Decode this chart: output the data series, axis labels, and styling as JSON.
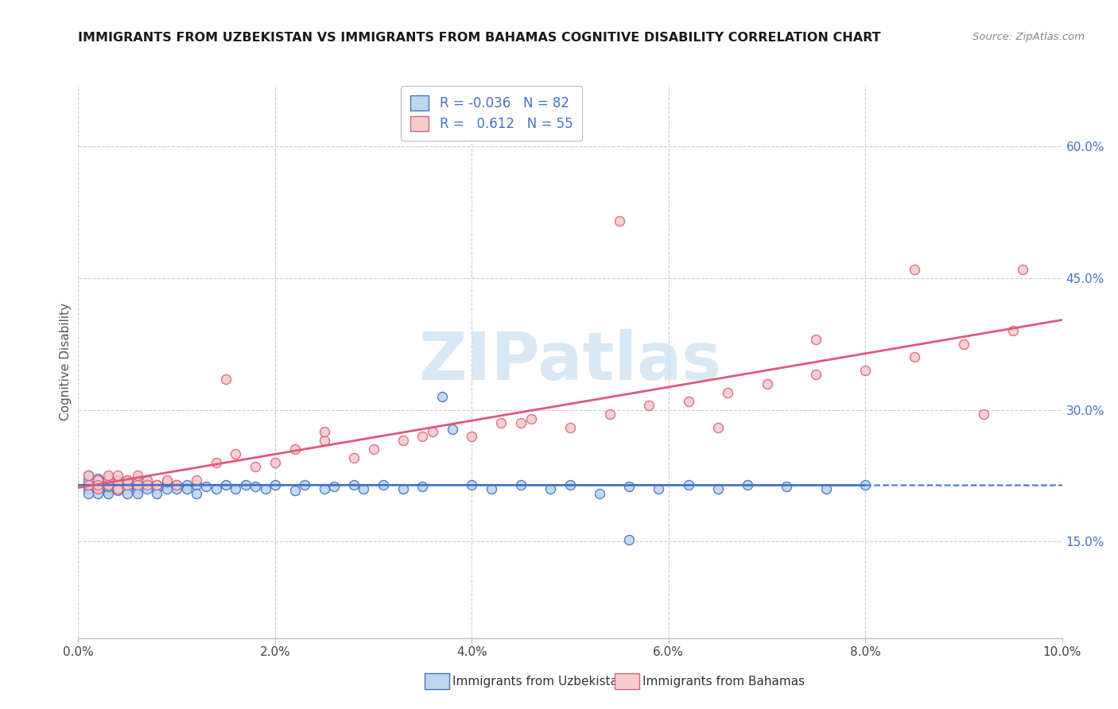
{
  "title": "IMMIGRANTS FROM UZBEKISTAN VS IMMIGRANTS FROM BAHAMAS COGNITIVE DISABILITY CORRELATION CHART",
  "source": "Source: ZipAtlas.com",
  "ylabel": "Cognitive Disability",
  "ytick_values": [
    0.15,
    0.3,
    0.45,
    0.6
  ],
  "xlim": [
    0.0,
    0.1
  ],
  "ylim": [
    0.04,
    0.67
  ],
  "xtick_values": [
    0.0,
    0.02,
    0.04,
    0.06,
    0.08,
    0.1
  ],
  "color_uzbekistan_fill": "#bdd7ee",
  "color_uzbekistan_edge": "#4472c4",
  "color_bahamas_fill": "#f4cccc",
  "color_bahamas_edge": "#e06080",
  "color_uzbekistan_line": "#4472c4",
  "color_bahamas_line": "#e05878",
  "color_grid": "#cccccc",
  "color_right_ytick": "#4472c4",
  "watermark_text": "ZIPatlas",
  "watermark_color": "#c8dff0",
  "legend_label1": "R = -0.036   N = 82",
  "legend_label2": "R =   0.612   N = 55",
  "bottom_label1": "Immigrants from Uzbekistan",
  "bottom_label2": "Immigrants from Bahamas",
  "uzb_x": [
    0.001,
    0.001,
    0.001,
    0.001,
    0.001,
    0.002,
    0.002,
    0.002,
    0.002,
    0.002,
    0.002,
    0.002,
    0.003,
    0.003,
    0.003,
    0.003,
    0.003,
    0.003,
    0.003,
    0.004,
    0.004,
    0.004,
    0.004,
    0.004,
    0.005,
    0.005,
    0.005,
    0.005,
    0.005,
    0.006,
    0.006,
    0.006,
    0.006,
    0.007,
    0.007,
    0.007,
    0.008,
    0.008,
    0.008,
    0.009,
    0.009,
    0.009,
    0.01,
    0.01,
    0.011,
    0.011,
    0.012,
    0.012,
    0.013,
    0.014,
    0.015,
    0.016,
    0.017,
    0.018,
    0.019,
    0.02,
    0.022,
    0.023,
    0.025,
    0.026,
    0.028,
    0.029,
    0.031,
    0.033,
    0.035,
    0.037,
    0.04,
    0.042,
    0.045,
    0.048,
    0.05,
    0.053,
    0.056,
    0.059,
    0.062,
    0.065,
    0.068,
    0.072,
    0.076,
    0.08,
    0.038,
    0.056
  ],
  "uzb_y": [
    0.215,
    0.22,
    0.21,
    0.205,
    0.225,
    0.215,
    0.21,
    0.22,
    0.205,
    0.218,
    0.212,
    0.222,
    0.215,
    0.208,
    0.218,
    0.21,
    0.223,
    0.205,
    0.213,
    0.215,
    0.22,
    0.208,
    0.213,
    0.218,
    0.215,
    0.21,
    0.22,
    0.205,
    0.218,
    0.215,
    0.21,
    0.22,
    0.205,
    0.215,
    0.21,
    0.218,
    0.215,
    0.21,
    0.205,
    0.215,
    0.21,
    0.218,
    0.215,
    0.21,
    0.215,
    0.21,
    0.215,
    0.205,
    0.213,
    0.21,
    0.215,
    0.21,
    0.215,
    0.213,
    0.21,
    0.215,
    0.208,
    0.215,
    0.21,
    0.213,
    0.215,
    0.21,
    0.215,
    0.21,
    0.213,
    0.315,
    0.215,
    0.21,
    0.215,
    0.21,
    0.215,
    0.205,
    0.213,
    0.21,
    0.215,
    0.21,
    0.215,
    0.213,
    0.21,
    0.215,
    0.278,
    0.152
  ],
  "bah_x": [
    0.001,
    0.001,
    0.002,
    0.002,
    0.002,
    0.003,
    0.003,
    0.003,
    0.004,
    0.004,
    0.004,
    0.005,
    0.005,
    0.006,
    0.006,
    0.007,
    0.007,
    0.008,
    0.009,
    0.01,
    0.012,
    0.014,
    0.016,
    0.018,
    0.02,
    0.022,
    0.025,
    0.028,
    0.03,
    0.033,
    0.036,
    0.04,
    0.043,
    0.046,
    0.05,
    0.054,
    0.058,
    0.062,
    0.066,
    0.07,
    0.075,
    0.08,
    0.085,
    0.09,
    0.095,
    0.015,
    0.025,
    0.035,
    0.045,
    0.055,
    0.065,
    0.075,
    0.085,
    0.092,
    0.096
  ],
  "bah_y": [
    0.215,
    0.225,
    0.21,
    0.22,
    0.215,
    0.22,
    0.215,
    0.225,
    0.218,
    0.21,
    0.225,
    0.215,
    0.22,
    0.215,
    0.225,
    0.22,
    0.215,
    0.215,
    0.22,
    0.215,
    0.22,
    0.24,
    0.25,
    0.235,
    0.24,
    0.255,
    0.265,
    0.245,
    0.255,
    0.265,
    0.275,
    0.27,
    0.285,
    0.29,
    0.28,
    0.295,
    0.305,
    0.31,
    0.32,
    0.33,
    0.34,
    0.345,
    0.36,
    0.375,
    0.39,
    0.335,
    0.275,
    0.27,
    0.285,
    0.515,
    0.28,
    0.38,
    0.46,
    0.295,
    0.46
  ]
}
